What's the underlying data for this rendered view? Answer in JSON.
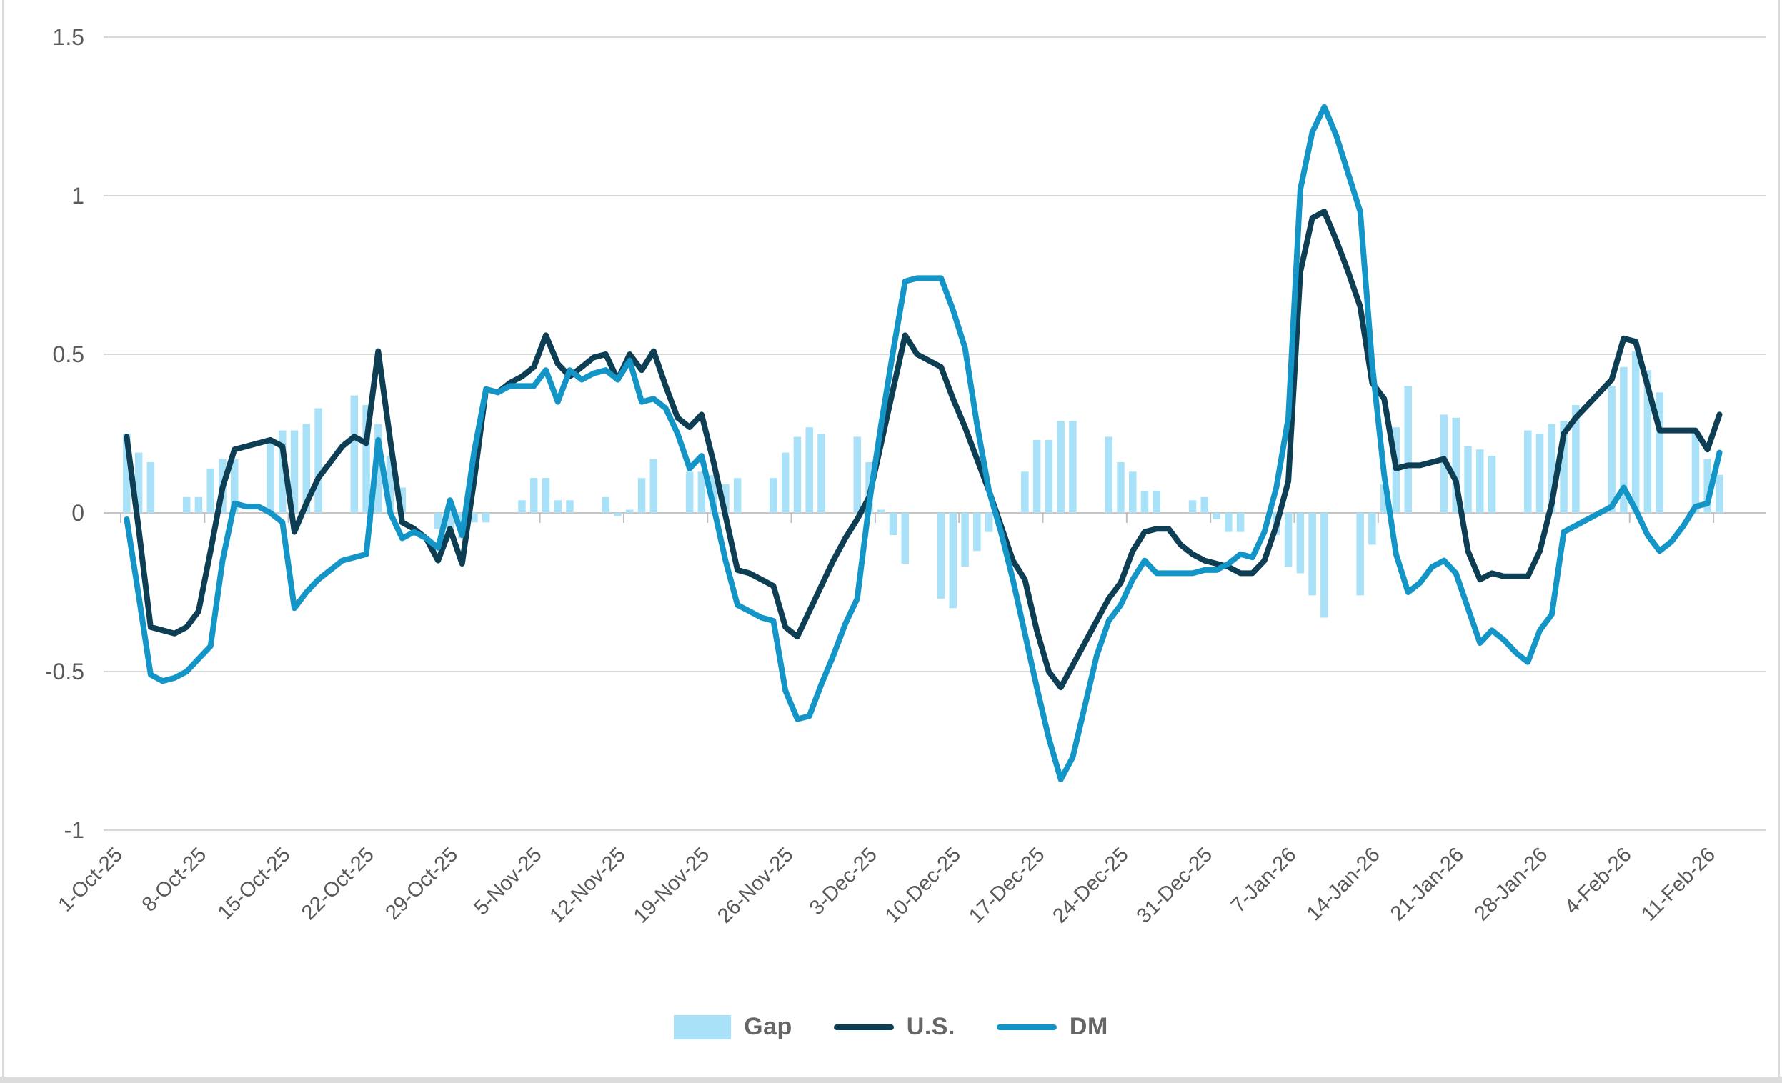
{
  "chart_data": {
    "type": "combo",
    "title": "",
    "n_points": 134,
    "x_tick_labels": [
      "1-Oct-25",
      "8-Oct-25",
      "15-Oct-25",
      "22-Oct-25",
      "29-Oct-25",
      "5-Nov-25",
      "12-Nov-25",
      "19-Nov-25",
      "26-Nov-25",
      "3-Dec-25",
      "10-Dec-25",
      "17-Dec-25",
      "24-Dec-25",
      "31-Dec-25",
      "7-Jan-26",
      "14-Jan-26",
      "21-Jan-26",
      "28-Jan-26",
      "4-Feb-26",
      "11-Feb-26"
    ],
    "x_tick_positions": [
      0,
      7,
      14,
      21,
      28,
      35,
      42,
      49,
      56,
      63,
      70,
      77,
      84,
      91,
      98,
      105,
      112,
      119,
      126,
      133
    ],
    "yticks": [
      1.5,
      1,
      0.5,
      0,
      -0.5,
      -1
    ],
    "ylim": [
      -1,
      1.5
    ],
    "grid": true,
    "legend_position": "bottom",
    "series": [
      {
        "name": "Gap",
        "type": "bar",
        "color": "#A9E2F8",
        "values": [
          0.25,
          0.19,
          0.16,
          0,
          0,
          0.05,
          0.05,
          0.14,
          0.17,
          0.17,
          0,
          0,
          0.23,
          0.26,
          0.26,
          0.28,
          0.33,
          0,
          0,
          0.37,
          0.34,
          0.28,
          0.18,
          0.08,
          0,
          0,
          -0.05,
          -0.08,
          -0.08,
          -0.03,
          -0.03,
          0,
          0,
          0.04,
          0.11,
          0.11,
          0.04,
          0.04,
          0,
          0,
          0.05,
          -0.01,
          0.01,
          0.11,
          0.17,
          0,
          0,
          0.13,
          0.13,
          0.12,
          0.09,
          0.11,
          0,
          0,
          0.11,
          0.19,
          0.24,
          0.27,
          0.25,
          0,
          0,
          0.24,
          0.16,
          0.01,
          -0.07,
          -0.16,
          0,
          0,
          -0.27,
          -0.3,
          -0.17,
          -0.12,
          -0.06,
          0,
          0,
          0.13,
          0.23,
          0.23,
          0.29,
          0.29,
          0,
          0,
          0.24,
          0.16,
          0.13,
          0.07,
          0.07,
          0,
          0,
          0.04,
          0.05,
          -0.02,
          -0.06,
          -0.06,
          0,
          0,
          -0.07,
          -0.17,
          -0.19,
          -0.26,
          -0.33,
          0,
          0,
          -0.26,
          -0.1,
          0.09,
          0.27,
          0.4,
          0,
          0,
          0.31,
          0.3,
          0.21,
          0.2,
          0.18,
          0,
          0,
          0.26,
          0.25,
          0.28,
          0.29,
          0.34,
          0,
          0,
          0.4,
          0.46,
          0.51,
          0.45,
          0.38,
          0,
          0,
          0.26,
          0.17,
          0.12
        ]
      },
      {
        "name": "U.S.",
        "type": "line",
        "color": "#0D3E54",
        "values": [
          0.24,
          -0.05,
          -0.36,
          -0.37,
          -0.38,
          -0.36,
          -0.31,
          -0.12,
          0.08,
          0.2,
          0.21,
          0.22,
          0.23,
          0.21,
          -0.06,
          0.03,
          0.11,
          0.16,
          0.21,
          0.24,
          0.22,
          0.51,
          0.23,
          -0.03,
          -0.05,
          -0.08,
          -0.15,
          -0.05,
          -0.16,
          0.1,
          0.39,
          0.38,
          0.41,
          0.43,
          0.46,
          0.56,
          0.47,
          0.43,
          0.46,
          0.49,
          0.5,
          0.42,
          0.5,
          0.45,
          0.51,
          0.4,
          0.3,
          0.27,
          0.31,
          0.16,
          -0.01,
          -0.18,
          -0.19,
          -0.21,
          -0.23,
          -0.36,
          -0.39,
          -0.31,
          -0.23,
          -0.15,
          -0.08,
          -0.02,
          0.05,
          0.22,
          0.39,
          0.56,
          0.5,
          0.48,
          0.46,
          0.36,
          0.27,
          0.17,
          0.07,
          -0.04,
          -0.15,
          -0.21,
          -0.37,
          -0.5,
          -0.55,
          -0.48,
          -0.41,
          -0.34,
          -0.27,
          -0.22,
          -0.12,
          -0.06,
          -0.05,
          -0.05,
          -0.1,
          -0.13,
          -0.15,
          -0.16,
          -0.17,
          -0.19,
          -0.19,
          -0.15,
          -0.04,
          0.1,
          0.76,
          0.93,
          0.95,
          0.86,
          0.76,
          0.65,
          0.41,
          0.36,
          0.14,
          0.15,
          0.15,
          0.16,
          0.17,
          0.1,
          -0.12,
          -0.21,
          -0.19,
          -0.2,
          -0.2,
          -0.2,
          -0.12,
          0.03,
          0.25,
          0.3,
          0.34,
          0.38,
          0.42,
          0.55,
          0.54,
          0.4,
          0.26,
          0.26,
          0.26,
          0.26,
          0.2,
          0.31
        ]
      },
      {
        "name": "DM",
        "type": "line",
        "color": "#1495C8",
        "values": [
          -0.02,
          -0.26,
          -0.51,
          -0.53,
          -0.52,
          -0.5,
          -0.46,
          -0.42,
          -0.15,
          0.03,
          0.02,
          0.02,
          0.0,
          -0.03,
          -0.3,
          -0.25,
          -0.21,
          -0.18,
          -0.15,
          -0.14,
          -0.13,
          0.23,
          0.0,
          -0.08,
          -0.06,
          -0.08,
          -0.11,
          0.04,
          -0.07,
          0.19,
          0.39,
          0.38,
          0.4,
          0.4,
          0.4,
          0.45,
          0.35,
          0.45,
          0.42,
          0.44,
          0.45,
          0.42,
          0.48,
          0.35,
          0.36,
          0.33,
          0.25,
          0.14,
          0.18,
          0.02,
          -0.15,
          -0.29,
          -0.31,
          -0.33,
          -0.34,
          -0.56,
          -0.65,
          -0.64,
          -0.54,
          -0.45,
          -0.35,
          -0.27,
          0.03,
          0.28,
          0.51,
          0.73,
          0.74,
          0.74,
          0.74,
          0.64,
          0.52,
          0.28,
          0.07,
          -0.06,
          -0.21,
          -0.38,
          -0.55,
          -0.71,
          -0.84,
          -0.77,
          -0.61,
          -0.45,
          -0.34,
          -0.29,
          -0.21,
          -0.15,
          -0.19,
          -0.19,
          -0.19,
          -0.19,
          -0.18,
          -0.18,
          -0.16,
          -0.13,
          -0.14,
          -0.06,
          0.08,
          0.3,
          1.02,
          1.2,
          1.28,
          1.19,
          1.07,
          0.95,
          0.47,
          0.12,
          -0.13,
          -0.25,
          -0.22,
          -0.17,
          -0.15,
          -0.19,
          -0.3,
          -0.41,
          -0.37,
          -0.4,
          -0.44,
          -0.47,
          -0.37,
          -0.32,
          -0.06,
          -0.04,
          -0.02,
          0.0,
          0.02,
          0.08,
          0.01,
          -0.07,
          -0.12,
          -0.09,
          -0.04,
          0.02,
          0.03,
          0.19
        ]
      }
    ]
  },
  "legend": {
    "items": [
      {
        "label": "Gap"
      },
      {
        "label": "U.S."
      },
      {
        "label": "DM"
      }
    ]
  },
  "axis": {
    "text_color": "#595959",
    "grid_color": "#D9D9D9",
    "zero_axis_color": "#C6C6C6",
    "tick_color": "#BFBFBF",
    "legend_text_color": "#666666"
  }
}
